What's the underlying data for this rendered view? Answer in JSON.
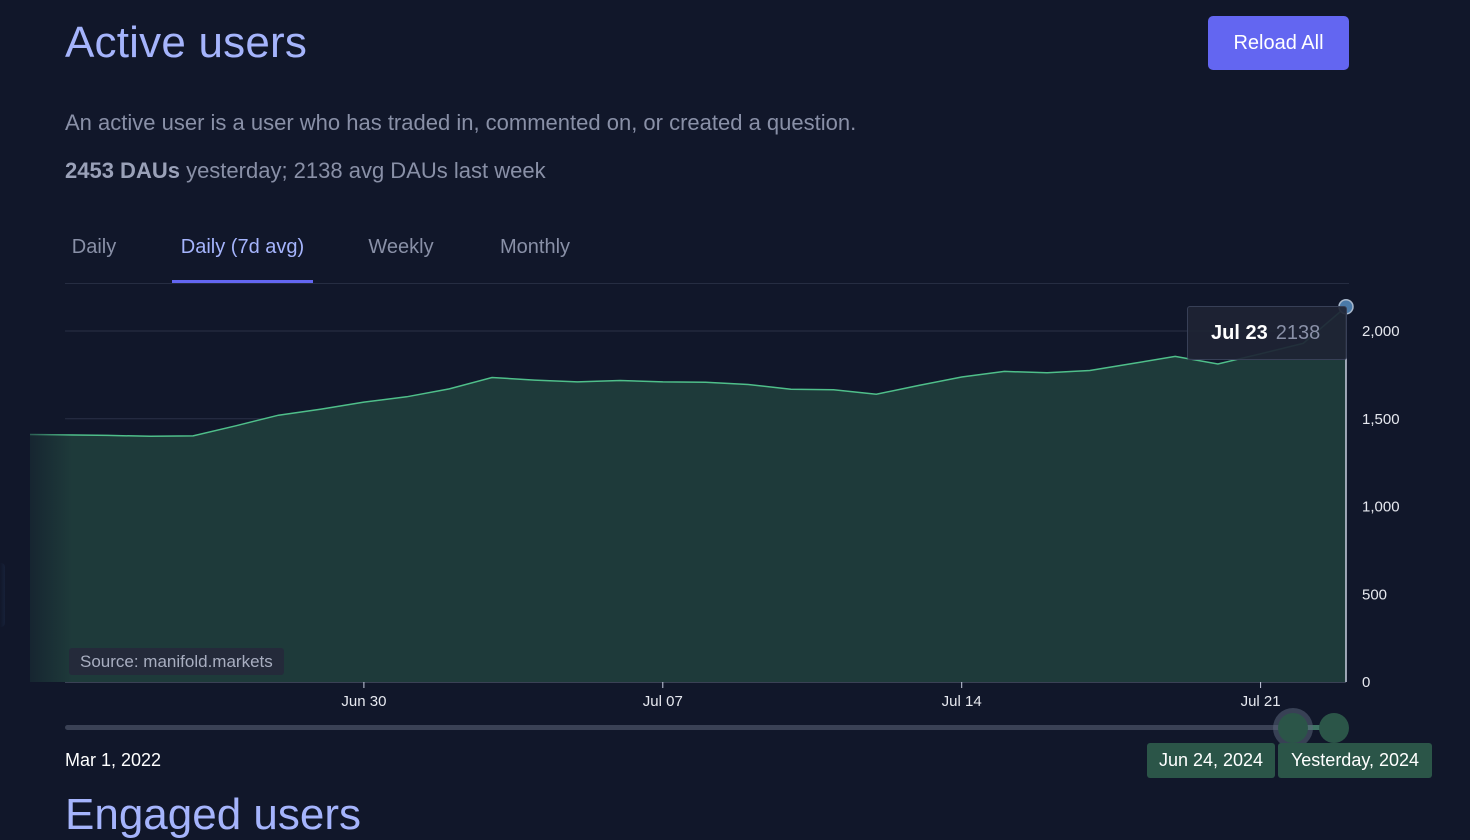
{
  "page": {
    "title": "Active users",
    "reload_label": "Reload All",
    "description": "An active user is a user who has traded in, commented on, or created a question.",
    "stats": {
      "dau_yesterday": "2453 DAUs",
      "rest": " yesterday; 2138 avg DAUs last week"
    },
    "tabs": [
      {
        "label": "Daily"
      },
      {
        "label": "Daily (7d avg)",
        "active": true
      },
      {
        "label": "Weekly"
      },
      {
        "label": "Monthly"
      }
    ],
    "source_label": "Source: manifold.markets",
    "next_section_title": "Engaged users"
  },
  "tooltip": {
    "date": "Jul 23",
    "value": "2138"
  },
  "range": {
    "start_label": "Mar 1, 2022",
    "from_label": "Jun 24, 2024",
    "to_label": "Yesterday, 2024"
  },
  "colors": {
    "background": "#11172a",
    "accent": "#6366f1",
    "title": "#a5b4fc",
    "line": "#4fbf8a",
    "area": "#1e3a3a",
    "range_chip": "#2b5548"
  },
  "chart_data": {
    "type": "area",
    "series": [
      {
        "values": [
          {
            "x": "2024-06-23",
            "y": 1410
          },
          {
            "x": "2024-06-24",
            "y": 1405
          },
          {
            "x": "2024-06-25",
            "y": 1400
          },
          {
            "x": "2024-06-26",
            "y": 1402
          },
          {
            "x": "2024-06-27",
            "y": 1460
          },
          {
            "x": "2024-06-28",
            "y": 1520
          },
          {
            "x": "2024-06-29",
            "y": 1555
          },
          {
            "x": "2024-06-30",
            "y": 1595
          },
          {
            "x": "2024-07-01",
            "y": 1625
          },
          {
            "x": "2024-07-02",
            "y": 1670
          },
          {
            "x": "2024-07-03",
            "y": 1735
          },
          {
            "x": "2024-07-04",
            "y": 1720
          },
          {
            "x": "2024-07-05",
            "y": 1710
          },
          {
            "x": "2024-07-06",
            "y": 1718
          },
          {
            "x": "2024-07-07",
            "y": 1710
          },
          {
            "x": "2024-07-08",
            "y": 1708
          },
          {
            "x": "2024-07-09",
            "y": 1695
          },
          {
            "x": "2024-07-10",
            "y": 1668
          },
          {
            "x": "2024-07-11",
            "y": 1665
          },
          {
            "x": "2024-07-12",
            "y": 1640
          },
          {
            "x": "2024-07-13",
            "y": 1690
          },
          {
            "x": "2024-07-14",
            "y": 1738
          },
          {
            "x": "2024-07-15",
            "y": 1770
          },
          {
            "x": "2024-07-16",
            "y": 1762
          },
          {
            "x": "2024-07-17",
            "y": 1775
          },
          {
            "x": "2024-07-18",
            "y": 1815
          },
          {
            "x": "2024-07-19",
            "y": 1855
          },
          {
            "x": "2024-07-20",
            "y": 1812
          },
          {
            "x": "2024-07-21",
            "y": 1870
          },
          {
            "x": "2024-07-22",
            "y": 1930
          },
          {
            "x": "2024-07-23",
            "y": 2138
          }
        ]
      }
    ],
    "x_ticks": [
      {
        "x": "2024-06-30",
        "label": "Jun 30"
      },
      {
        "x": "2024-07-07",
        "label": "Jul 07"
      },
      {
        "x": "2024-07-14",
        "label": "Jul 14"
      },
      {
        "x": "2024-07-21",
        "label": "Jul 21"
      }
    ],
    "y_ticks": [
      {
        "value": 0,
        "label": "0"
      },
      {
        "value": 500,
        "label": "500"
      },
      {
        "value": 1000,
        "label": "1,000"
      },
      {
        "value": 1500,
        "label": "1,500"
      },
      {
        "value": 2000,
        "label": "2,000"
      }
    ],
    "xlim": [
      "2024-06-23",
      "2024-07-23"
    ],
    "ylim": [
      0,
      2000
    ],
    "y_axis_position": "right",
    "grid": true,
    "xlabel": "",
    "ylabel": ""
  }
}
